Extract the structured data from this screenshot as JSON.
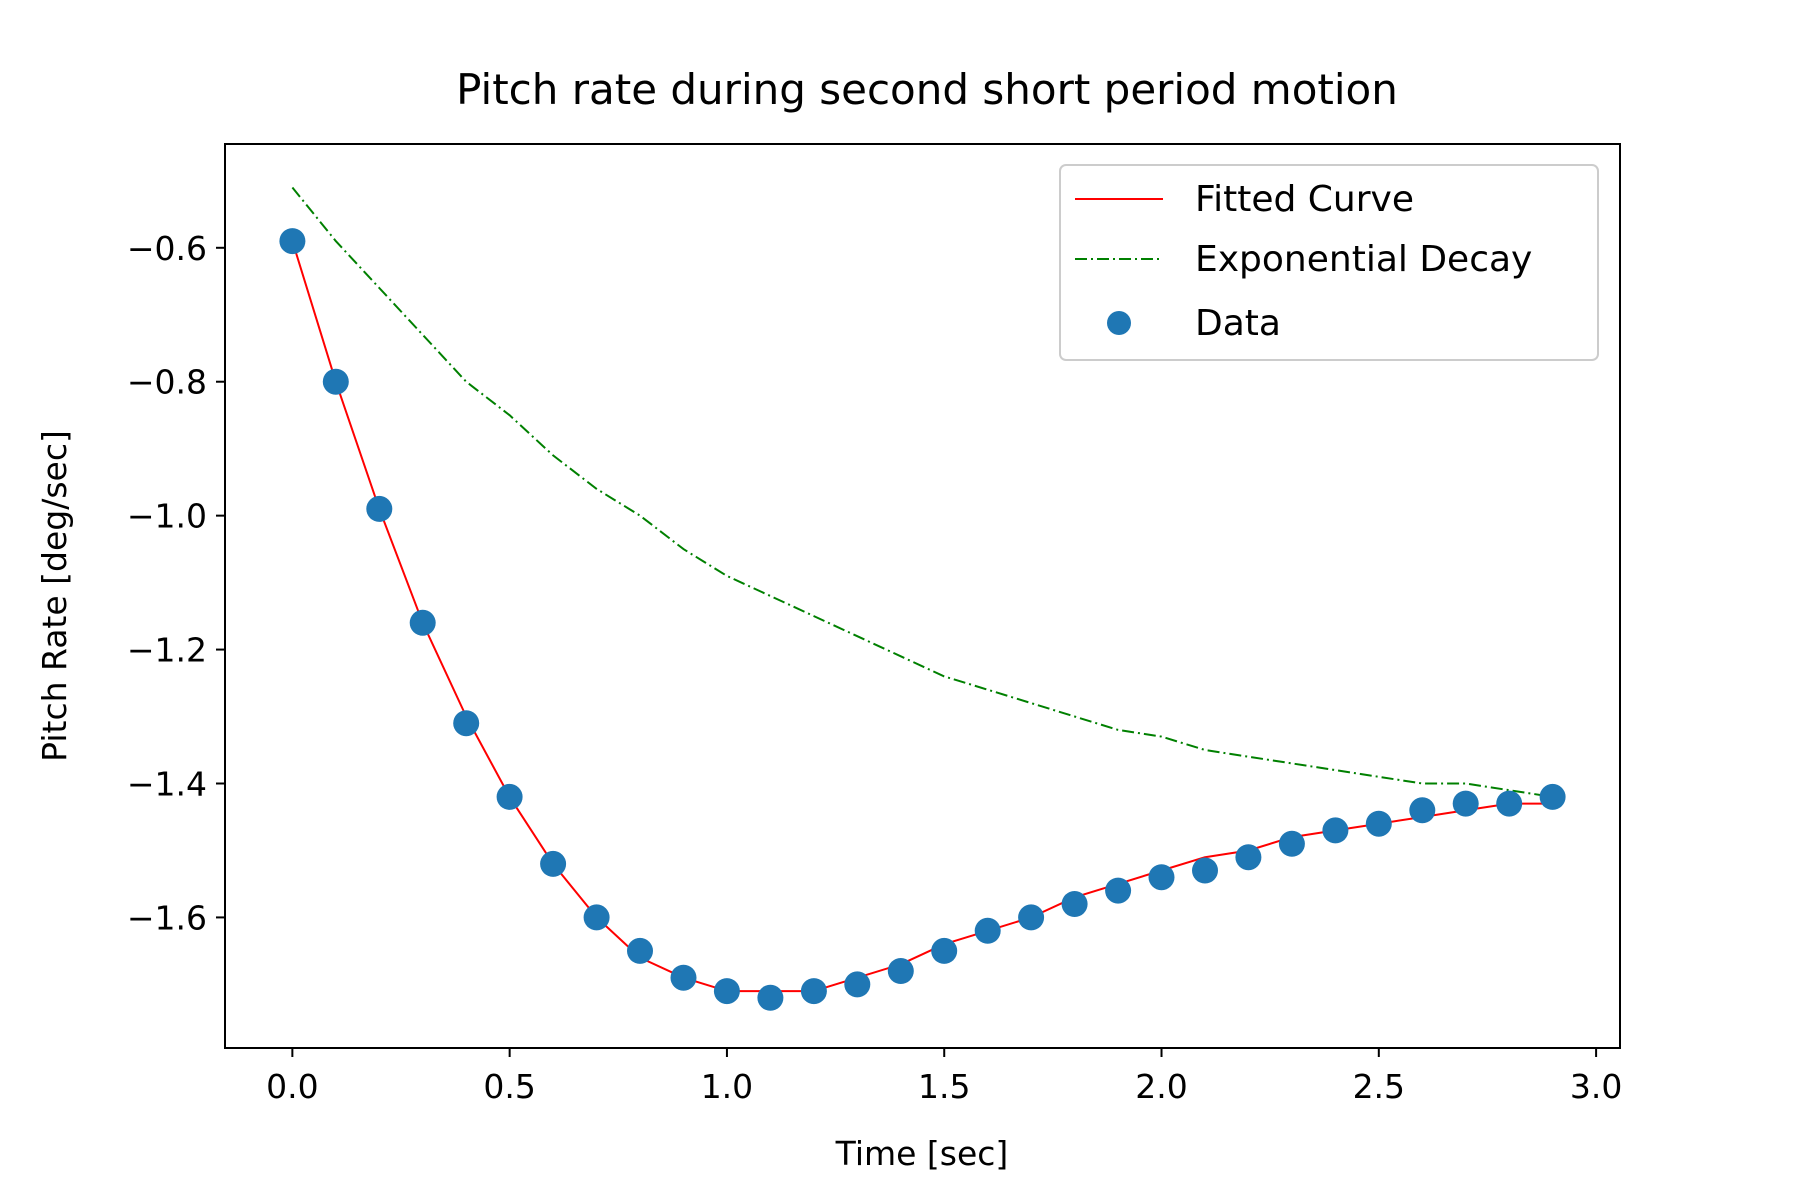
{
  "chart_data": {
    "type": "line",
    "title": "Pitch rate during second short period motion",
    "xlabel": "Time [sec]",
    "ylabel": "Pitch Rate [deg/sec]",
    "xlim": [
      -0.155,
      3.055
    ],
    "ylim": [
      -1.795,
      -0.445
    ],
    "xticks": [
      0.0,
      0.5,
      1.0,
      1.5,
      2.0,
      2.5,
      3.0
    ],
    "xtick_labels": [
      "0.0",
      "0.5",
      "1.0",
      "1.5",
      "2.0",
      "2.5",
      "3.0"
    ],
    "yticks": [
      -0.6,
      -0.8,
      -1.0,
      -1.2,
      -1.4,
      -1.6
    ],
    "ytick_labels": [
      "−0.6",
      "−0.8",
      "−1.0",
      "−1.2",
      "−1.4",
      "−1.6"
    ],
    "grid": false,
    "legend_position": "top-right",
    "colors": {
      "fitted": "#ff0000",
      "decay": "#008000",
      "data": "#1f77b4"
    },
    "series": [
      {
        "name": "Fitted Curve",
        "style": "solid",
        "x": [
          0.0,
          0.1,
          0.2,
          0.3,
          0.4,
          0.5,
          0.6,
          0.7,
          0.8,
          0.9,
          1.0,
          1.1,
          1.2,
          1.3,
          1.4,
          1.5,
          1.6,
          1.7,
          1.8,
          1.9,
          2.0,
          2.1,
          2.2,
          2.3,
          2.4,
          2.5,
          2.6,
          2.7,
          2.8,
          2.9
        ],
        "y": [
          -0.59,
          -0.8,
          -0.99,
          -1.16,
          -1.3,
          -1.42,
          -1.52,
          -1.6,
          -1.66,
          -1.69,
          -1.71,
          -1.71,
          -1.71,
          -1.69,
          -1.67,
          -1.64,
          -1.62,
          -1.6,
          -1.57,
          -1.55,
          -1.53,
          -1.51,
          -1.5,
          -1.48,
          -1.47,
          -1.46,
          -1.45,
          -1.44,
          -1.43,
          -1.43
        ]
      },
      {
        "name": "Exponential Decay",
        "style": "dashdot",
        "x": [
          0.0,
          0.1,
          0.2,
          0.3,
          0.4,
          0.5,
          0.6,
          0.7,
          0.8,
          0.9,
          1.0,
          1.1,
          1.2,
          1.3,
          1.4,
          1.5,
          1.6,
          1.7,
          1.8,
          1.9,
          2.0,
          2.1,
          2.2,
          2.3,
          2.4,
          2.5,
          2.6,
          2.7,
          2.8,
          2.9
        ],
        "y": [
          -0.51,
          -0.59,
          -0.66,
          -0.73,
          -0.8,
          -0.85,
          -0.91,
          -0.96,
          -1.0,
          -1.05,
          -1.09,
          -1.12,
          -1.15,
          -1.18,
          -1.21,
          -1.24,
          -1.26,
          -1.28,
          -1.3,
          -1.32,
          -1.33,
          -1.35,
          -1.36,
          -1.37,
          -1.38,
          -1.39,
          -1.4,
          -1.4,
          -1.41,
          -1.42
        ]
      },
      {
        "name": "Data",
        "style": "scatter",
        "x": [
          0.0,
          0.1,
          0.2,
          0.3,
          0.4,
          0.5,
          0.6,
          0.7,
          0.8,
          0.9,
          1.0,
          1.1,
          1.2,
          1.3,
          1.4,
          1.5,
          1.6,
          1.7,
          1.8,
          1.9,
          2.0,
          2.1,
          2.2,
          2.3,
          2.4,
          2.5,
          2.6,
          2.7,
          2.8,
          2.9
        ],
        "y": [
          -0.59,
          -0.8,
          -0.99,
          -1.16,
          -1.31,
          -1.42,
          -1.52,
          -1.6,
          -1.65,
          -1.69,
          -1.71,
          -1.72,
          -1.71,
          -1.7,
          -1.68,
          -1.65,
          -1.62,
          -1.6,
          -1.58,
          -1.56,
          -1.54,
          -1.53,
          -1.51,
          -1.49,
          -1.47,
          -1.46,
          -1.44,
          -1.43,
          -1.43,
          -1.42
        ]
      }
    ]
  }
}
